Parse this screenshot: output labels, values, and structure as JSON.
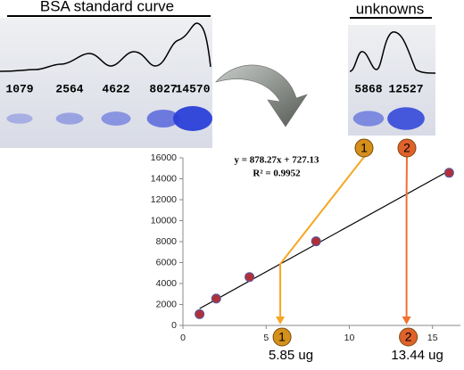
{
  "standards": {
    "title": "BSA standard curve",
    "values": [
      1079,
      2564,
      4622,
      8027,
      14570
    ]
  },
  "unknowns": {
    "title": "unknowns",
    "values": [
      5868,
      12527
    ]
  },
  "chart_data": {
    "type": "scatter",
    "x": [
      1,
      2,
      4,
      8,
      16
    ],
    "values": [
      1079,
      2564,
      4622,
      8027,
      14570
    ],
    "color": "#b0303a",
    "xlim": [
      0,
      17
    ],
    "ylim": [
      0,
      16000
    ],
    "xticks": [
      0,
      5,
      10,
      15
    ],
    "yticks": [
      0,
      2000,
      4000,
      6000,
      8000,
      10000,
      12000,
      14000,
      16000
    ],
    "trendline": {
      "slope": 878.27,
      "intercept": 727.13,
      "label": "y = 878.27x + 727.13",
      "r_squared": "R² = 0.9952"
    },
    "results": [
      {
        "label": "1",
        "x": 5.85,
        "x_label": "5.85 ug",
        "color": "#f5a623",
        "badge": "#d4901a"
      },
      {
        "label": "2",
        "x": 13.44,
        "x_label": "13.44 ug",
        "color": "#f07030",
        "badge": "#e0622a"
      }
    ]
  }
}
